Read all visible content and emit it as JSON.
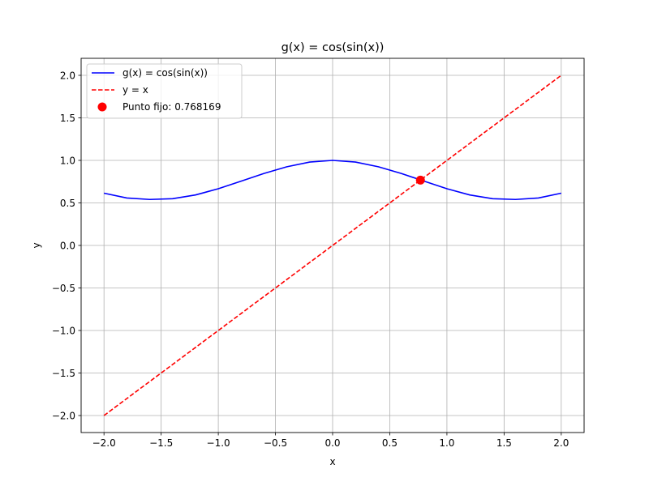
{
  "chart_data": {
    "type": "line",
    "title": "g(x) = cos(sin(x))",
    "xlabel": "x",
    "ylabel": "y",
    "xlim": [
      -2.2,
      2.2
    ],
    "ylim": [
      -2.2,
      2.2
    ],
    "xticks": [
      -2.0,
      -1.5,
      -1.0,
      -0.5,
      0.0,
      0.5,
      1.0,
      1.5,
      2.0
    ],
    "xtick_labels": [
      "−2.0",
      "−1.5",
      "−1.0",
      "−0.5",
      "0.0",
      "0.5",
      "1.0",
      "1.5",
      "2.0"
    ],
    "yticks": [
      -2.0,
      -1.5,
      -1.0,
      -0.5,
      0.0,
      0.5,
      1.0,
      1.5,
      2.0
    ],
    "ytick_labels": [
      "−2.0",
      "−1.5",
      "−1.0",
      "−0.5",
      "0.0",
      "0.5",
      "1.0",
      "1.5",
      "2.0"
    ],
    "grid": true,
    "legend_position": "upper-left",
    "series": [
      {
        "name": "g(x) = cos(sin(x))",
        "style": "solid",
        "color": "#0000ff",
        "x": [
          -2.0,
          -1.8,
          -1.6,
          -1.4,
          -1.2,
          -1.0,
          -0.8,
          -0.6,
          -0.4,
          -0.2,
          0.0,
          0.2,
          0.4,
          0.6,
          0.8,
          1.0,
          1.2,
          1.4,
          1.6,
          1.8,
          2.0
        ],
        "y": [
          0.6143,
          0.5575,
          0.5404,
          0.5491,
          0.5934,
          0.6664,
          0.756,
          0.8465,
          0.9251,
          0.9803,
          1.0,
          0.9803,
          0.9251,
          0.8465,
          0.756,
          0.6664,
          0.5934,
          0.5491,
          0.5404,
          0.5575,
          0.6143
        ]
      },
      {
        "name": "y = x",
        "style": "dashed",
        "color": "#ff0000",
        "x": [
          -2.0,
          2.0
        ],
        "y": [
          -2.0,
          2.0
        ]
      }
    ],
    "points": [
      {
        "name": "Punto fijo: 0.768169",
        "color": "#ff0000",
        "x": 0.768169,
        "y": 0.768169
      }
    ]
  }
}
